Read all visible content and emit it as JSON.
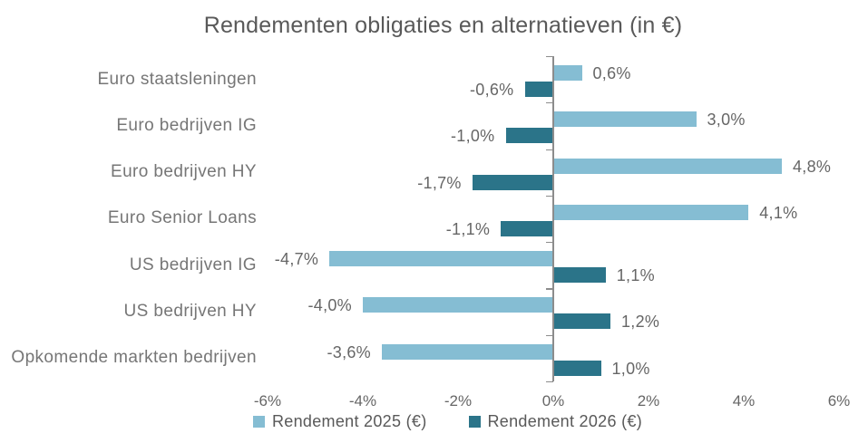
{
  "title": "Rendementen obligaties en alternatieven (in €)",
  "colors": {
    "series_2025": "#85BDD3",
    "series_2026": "#2B7489",
    "axis": "#8C8C8C",
    "title_text": "#595959",
    "label_text": "#666666",
    "background": "#FFFFFF"
  },
  "chart_data": {
    "type": "bar",
    "orientation": "horizontal",
    "title": "Rendementen obligaties en alternatieven (in €)",
    "categories": [
      "Euro staatsleningen",
      "Euro bedrijven IG",
      "Euro bedrijven HY",
      "Euro Senior Loans",
      "US bedrijven IG",
      "US bedrijven HY",
      "Opkomende markten bedrijven"
    ],
    "series": [
      {
        "name": "Rendement 2025 (€)",
        "color": "#85BDD3",
        "values": [
          0.6,
          3.0,
          4.8,
          4.1,
          -4.7,
          -4.0,
          -3.6
        ],
        "labels": [
          "0,6%",
          "3,0%",
          "4,8%",
          "4,1%",
          "-4,7%",
          "-4,0%",
          "-3,6%"
        ]
      },
      {
        "name": "Rendement 2026 (€)",
        "color": "#2B7489",
        "values": [
          -0.6,
          -1.0,
          -1.7,
          -1.1,
          1.1,
          1.2,
          1.0
        ],
        "labels": [
          "-0,6%",
          "-1,0%",
          "-1,7%",
          "-1,1%",
          "1,1%",
          "1,2%",
          "1,0%"
        ]
      }
    ],
    "x_axis": {
      "min": -6,
      "max": 6,
      "ticks": [
        -6,
        -4,
        -2,
        0,
        2,
        4,
        6
      ],
      "tick_labels": [
        "-6%",
        "-4%",
        "-2%",
        "0%",
        "2%",
        "4%",
        "6%"
      ],
      "unit": "%"
    },
    "grid": false,
    "legend_position": "bottom"
  }
}
